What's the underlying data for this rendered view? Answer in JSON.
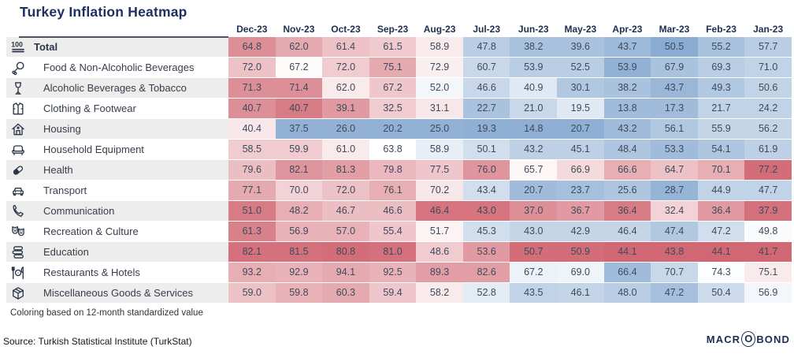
{
  "page": {
    "logo_text": {
      "pre": "MACR",
      "o": "O",
      "post": "BOND"
    }
  },
  "chart_data": {
    "type": "heatmap",
    "title": "Turkey Inflation Heatmap",
    "coloring_note": "Coloring based on 12-month standardized value",
    "source": "Source: Turkish Statistical Institute (TurkStat)",
    "value_format": "percent_yoy_one_decimal",
    "legend_position": "none",
    "palette": {
      "positive_end": "#c23444",
      "neutral": "#ffffff",
      "negative_end": "#6390c3"
    },
    "columns": [
      "Dec-23",
      "Nov-23",
      "Oct-23",
      "Sep-23",
      "Aug-23",
      "Jul-23",
      "Jun-23",
      "May-23",
      "Apr-23",
      "Mar-23",
      "Feb-23",
      "Jan-23"
    ],
    "rows": [
      {
        "label": "Total",
        "icon": "hundred-icon",
        "bold": true,
        "values": [
          64.8,
          62.0,
          61.4,
          61.5,
          58.9,
          47.8,
          38.2,
          39.6,
          43.7,
          50.5,
          55.2,
          57.7
        ],
        "tones": [
          0.55,
          0.42,
          0.3,
          0.26,
          0.1,
          -0.45,
          -0.55,
          -0.55,
          -0.62,
          -0.75,
          -0.55,
          -0.45
        ]
      },
      {
        "label": "Food & Non-Alcoholic Beverages",
        "icon": "drumstick-icon",
        "bold": false,
        "values": [
          72.0,
          67.2,
          72.0,
          75.1,
          72.9,
          60.7,
          53.9,
          52.5,
          53.9,
          67.9,
          69.3,
          71.0
        ],
        "tones": [
          0.3,
          0.02,
          0.25,
          0.42,
          0.08,
          -0.35,
          -0.45,
          -0.45,
          -0.7,
          -0.55,
          -0.45,
          -0.4
        ]
      },
      {
        "label": "Alcoholic Beverages & Tobacco",
        "icon": "goblet-icon",
        "bold": false,
        "values": [
          71.3,
          71.4,
          62.0,
          67.2,
          52.0,
          46.6,
          40.9,
          30.1,
          38.2,
          43.7,
          49.3,
          50.6
        ],
        "tones": [
          0.55,
          0.55,
          0.1,
          0.28,
          -0.08,
          -0.35,
          -0.2,
          -0.5,
          -0.55,
          -0.65,
          -0.5,
          -0.4
        ]
      },
      {
        "label": "Clothing & Footwear",
        "icon": "jacket-icon",
        "bold": false,
        "values": [
          40.7,
          40.7,
          39.1,
          32.5,
          31.1,
          22.7,
          21.0,
          19.5,
          13.8,
          17.3,
          21.7,
          24.2
        ],
        "tones": [
          0.55,
          0.65,
          0.5,
          0.25,
          0.12,
          -0.55,
          -0.35,
          -0.2,
          -0.6,
          -0.6,
          -0.4,
          -0.4
        ]
      },
      {
        "label": "Housing",
        "icon": "house-icon",
        "bold": false,
        "values": [
          40.4,
          37.5,
          26.0,
          20.2,
          25.0,
          19.3,
          14.8,
          20.7,
          43.2,
          56.1,
          55.9,
          56.2
        ],
        "tones": [
          0.12,
          -0.7,
          -0.7,
          -0.7,
          -0.7,
          -0.72,
          -0.72,
          -0.72,
          -0.6,
          -0.5,
          -0.38,
          -0.38
        ]
      },
      {
        "label": "Household Equipment",
        "icon": "sofa-icon",
        "bold": false,
        "values": [
          58.5,
          59.9,
          61.0,
          63.8,
          58.9,
          50.1,
          43.2,
          45.1,
          48.4,
          53.3,
          54.1,
          61.9
        ],
        "tones": [
          0.25,
          0.25,
          0.1,
          0.0,
          -0.15,
          -0.3,
          -0.42,
          -0.42,
          -0.52,
          -0.6,
          -0.52,
          -0.42
        ]
      },
      {
        "label": "Health",
        "icon": "pill-icon",
        "bold": false,
        "values": [
          79.6,
          82.1,
          81.3,
          79.8,
          77.5,
          76.0,
          65.7,
          66.9,
          66.6,
          64.7,
          70.1,
          77.2
        ],
        "tones": [
          0.32,
          0.52,
          0.48,
          0.35,
          0.28,
          0.52,
          0.04,
          0.18,
          0.4,
          0.3,
          0.4,
          0.72
        ]
      },
      {
        "label": "Transport",
        "icon": "car-icon",
        "bold": false,
        "values": [
          77.1,
          70.0,
          72.0,
          76.1,
          70.2,
          43.4,
          20.7,
          23.7,
          25.6,
          28.7,
          44.9,
          47.7
        ],
        "tones": [
          0.42,
          0.22,
          0.3,
          0.4,
          0.12,
          -0.3,
          -0.6,
          -0.58,
          -0.52,
          -0.68,
          -0.4,
          -0.4
        ]
      },
      {
        "label": "Communication",
        "icon": "phone-icon",
        "bold": false,
        "values": [
          51.0,
          48.2,
          46.7,
          46.6,
          46.4,
          43.0,
          37.0,
          36.7,
          36.4,
          32.4,
          36.4,
          37.9
        ],
        "tones": [
          0.65,
          0.4,
          0.32,
          0.32,
          0.68,
          0.68,
          0.55,
          0.5,
          0.65,
          0.22,
          0.5,
          0.7
        ]
      },
      {
        "label": "Recreation & Culture",
        "icon": "theater-masks-icon",
        "bold": false,
        "values": [
          61.3,
          56.9,
          57.0,
          55.4,
          51.7,
          45.3,
          43.0,
          42.9,
          46.4,
          47.4,
          47.2,
          49.8
        ],
        "tones": [
          0.62,
          0.38,
          0.38,
          0.28,
          0.06,
          -0.3,
          -0.38,
          -0.38,
          -0.38,
          -0.5,
          -0.3,
          -0.04
        ]
      },
      {
        "label": "Education",
        "icon": "books-icon",
        "bold": false,
        "values": [
          82.1,
          81.5,
          80.8,
          81.0,
          48.6,
          53.6,
          50.7,
          50.9,
          44.1,
          43.8,
          44.1,
          41.7
        ],
        "tones": [
          0.7,
          0.7,
          0.72,
          0.7,
          0.25,
          0.5,
          0.72,
          0.72,
          0.75,
          0.75,
          0.75,
          0.75
        ]
      },
      {
        "label": "Restaurants & Hotels",
        "icon": "dining-icon",
        "bold": false,
        "values": [
          93.2,
          92.9,
          94.1,
          92.5,
          89.3,
          82.6,
          67.2,
          69.0,
          66.4,
          70.7,
          74.3,
          75.1
        ],
        "tones": [
          0.4,
          0.38,
          0.42,
          0.38,
          0.48,
          0.48,
          -0.12,
          -0.1,
          -0.6,
          -0.35,
          -0.02,
          0.1
        ]
      },
      {
        "label": "Miscellaneous Goods & Services",
        "icon": "package-icon",
        "bold": false,
        "values": [
          59.0,
          59.8,
          60.3,
          59.4,
          58.2,
          52.8,
          43.5,
          46.1,
          48.0,
          47.2,
          50.4,
          56.9
        ],
        "tones": [
          0.3,
          0.38,
          0.42,
          0.28,
          0.1,
          -0.18,
          -0.4,
          -0.38,
          -0.45,
          -0.58,
          -0.32,
          -0.08
        ]
      }
    ]
  }
}
